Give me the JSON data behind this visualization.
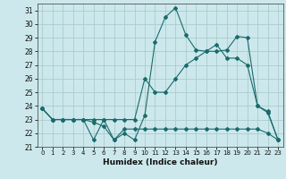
{
  "xlabel": "Humidex (Indice chaleur)",
  "bg_color": "#cce8ec",
  "grid_color": "#aacccc",
  "line_color": "#1a6b6b",
  "xlim": [
    -0.5,
    23.5
  ],
  "ylim": [
    21,
    31.5
  ],
  "yticks": [
    21,
    22,
    23,
    24,
    25,
    26,
    27,
    28,
    29,
    30,
    31
  ],
  "xticks": [
    0,
    1,
    2,
    3,
    4,
    5,
    6,
    7,
    8,
    9,
    10,
    11,
    12,
    13,
    14,
    15,
    16,
    17,
    18,
    19,
    20,
    21,
    22,
    23
  ],
  "series1": [
    23.8,
    23.0,
    23.0,
    23.0,
    23.0,
    21.5,
    23.0,
    21.5,
    22.0,
    21.5,
    23.3,
    28.7,
    30.5,
    31.2,
    29.2,
    28.1,
    28.0,
    28.0,
    28.1,
    29.1,
    29.0,
    24.0,
    23.6,
    21.5
  ],
  "series2": [
    23.8,
    23.0,
    23.0,
    23.0,
    23.0,
    23.0,
    23.0,
    23.0,
    23.0,
    23.0,
    26.0,
    25.0,
    25.0,
    26.0,
    27.0,
    27.5,
    28.0,
    28.5,
    27.5,
    27.5,
    27.0,
    24.0,
    23.5,
    21.5
  ],
  "series3": [
    23.8,
    23.0,
    23.0,
    23.0,
    23.0,
    22.8,
    22.5,
    21.5,
    22.3,
    22.3,
    22.3,
    22.3,
    22.3,
    22.3,
    22.3,
    22.3,
    22.3,
    22.3,
    22.3,
    22.3,
    22.3,
    22.3,
    22.0,
    21.5
  ]
}
